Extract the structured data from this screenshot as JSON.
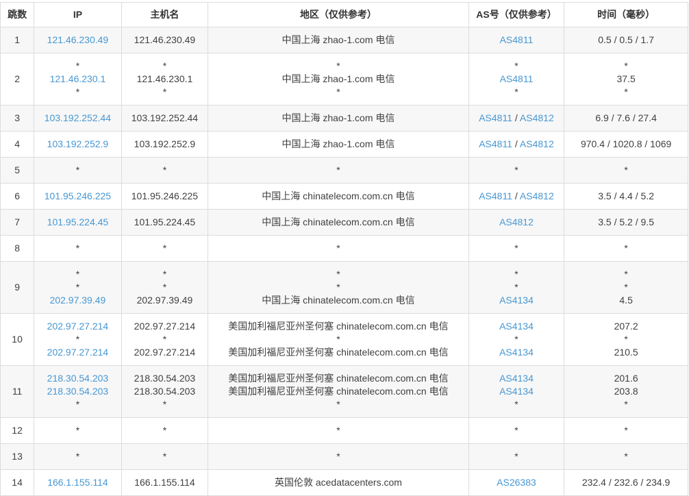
{
  "colors": {
    "link": "#4697d3",
    "text": "#3f3f3f",
    "stripe": "#f7f7f7",
    "border": "#dcdcdc"
  },
  "table": {
    "headers": [
      {
        "key": "hop",
        "label": "跳数"
      },
      {
        "key": "ip",
        "label": "IP"
      },
      {
        "key": "host",
        "label": "主机名"
      },
      {
        "key": "region",
        "label": "地区（仅供参考）"
      },
      {
        "key": "asn",
        "label": "AS号（仅供参考）"
      },
      {
        "key": "time",
        "label": "时间（毫秒）"
      }
    ],
    "rows": [
      {
        "hop": "1",
        "ip": [
          {
            "t": "121.46.230.49",
            "l": true
          }
        ],
        "host": [
          "121.46.230.49"
        ],
        "region": [
          "中国上海 zhao-1.com 电信"
        ],
        "asn": [
          [
            {
              "t": "AS4811",
              "l": true
            }
          ]
        ],
        "time": [
          "0.5 / 0.5 / 1.7"
        ]
      },
      {
        "hop": "2",
        "ip": [
          {
            "t": "*"
          },
          {
            "t": "121.46.230.1",
            "l": true
          },
          {
            "t": "*"
          }
        ],
        "host": [
          "*",
          "121.46.230.1",
          "*"
        ],
        "region": [
          "*",
          "中国上海 zhao-1.com 电信",
          "*"
        ],
        "asn": [
          [
            {
              "t": "*"
            }
          ],
          [
            {
              "t": "AS4811",
              "l": true
            }
          ],
          [
            {
              "t": "*"
            }
          ]
        ],
        "time": [
          "*",
          "37.5",
          "*"
        ]
      },
      {
        "hop": "3",
        "ip": [
          {
            "t": "103.192.252.44",
            "l": true
          }
        ],
        "host": [
          "103.192.252.44"
        ],
        "region": [
          "中国上海 zhao-1.com 电信"
        ],
        "asn": [
          [
            {
              "t": "AS4811",
              "l": true
            },
            {
              "t": " / "
            },
            {
              "t": "AS4812",
              "l": true
            }
          ]
        ],
        "time": [
          "6.9 / 7.6 / 27.4"
        ]
      },
      {
        "hop": "4",
        "ip": [
          {
            "t": "103.192.252.9",
            "l": true
          }
        ],
        "host": [
          "103.192.252.9"
        ],
        "region": [
          "中国上海 zhao-1.com 电信"
        ],
        "asn": [
          [
            {
              "t": "AS4811",
              "l": true
            },
            {
              "t": " / "
            },
            {
              "t": "AS4812",
              "l": true
            }
          ]
        ],
        "time": [
          "970.4 / 1020.8 / 1069"
        ]
      },
      {
        "hop": "5",
        "ip": [
          {
            "t": "*"
          }
        ],
        "host": [
          "*"
        ],
        "region": [
          "*"
        ],
        "asn": [
          [
            {
              "t": "*"
            }
          ]
        ],
        "time": [
          "*"
        ]
      },
      {
        "hop": "6",
        "ip": [
          {
            "t": "101.95.246.225",
            "l": true
          }
        ],
        "host": [
          "101.95.246.225"
        ],
        "region": [
          "中国上海 chinatelecom.com.cn 电信"
        ],
        "asn": [
          [
            {
              "t": "AS4811",
              "l": true
            },
            {
              "t": " / "
            },
            {
              "t": "AS4812",
              "l": true
            }
          ]
        ],
        "time": [
          "3.5 / 4.4 / 5.2"
        ]
      },
      {
        "hop": "7",
        "ip": [
          {
            "t": "101.95.224.45",
            "l": true
          }
        ],
        "host": [
          "101.95.224.45"
        ],
        "region": [
          "中国上海 chinatelecom.com.cn 电信"
        ],
        "asn": [
          [
            {
              "t": "AS4812",
              "l": true
            }
          ]
        ],
        "time": [
          "3.5 / 5.2 / 9.5"
        ]
      },
      {
        "hop": "8",
        "ip": [
          {
            "t": "*"
          }
        ],
        "host": [
          "*"
        ],
        "region": [
          "*"
        ],
        "asn": [
          [
            {
              "t": "*"
            }
          ]
        ],
        "time": [
          "*"
        ]
      },
      {
        "hop": "9",
        "ip": [
          {
            "t": "*"
          },
          {
            "t": "*"
          },
          {
            "t": "202.97.39.49",
            "l": true
          }
        ],
        "host": [
          "*",
          "*",
          "202.97.39.49"
        ],
        "region": [
          "*",
          "*",
          "中国上海 chinatelecom.com.cn 电信"
        ],
        "asn": [
          [
            {
              "t": "*"
            }
          ],
          [
            {
              "t": "*"
            }
          ],
          [
            {
              "t": "AS4134",
              "l": true
            }
          ]
        ],
        "time": [
          "*",
          "*",
          "4.5"
        ]
      },
      {
        "hop": "10",
        "ip": [
          {
            "t": "202.97.27.214",
            "l": true
          },
          {
            "t": "*"
          },
          {
            "t": "202.97.27.214",
            "l": true
          }
        ],
        "host": [
          "202.97.27.214",
          "*",
          "202.97.27.214"
        ],
        "region": [
          "美国加利福尼亚州圣何塞 chinatelecom.com.cn 电信",
          "*",
          "美国加利福尼亚州圣何塞 chinatelecom.com.cn 电信"
        ],
        "asn": [
          [
            {
              "t": "AS4134",
              "l": true
            }
          ],
          [
            {
              "t": "*"
            }
          ],
          [
            {
              "t": "AS4134",
              "l": true
            }
          ]
        ],
        "time": [
          "207.2",
          "*",
          "210.5"
        ]
      },
      {
        "hop": "11",
        "ip": [
          {
            "t": "218.30.54.203",
            "l": true
          },
          {
            "t": "218.30.54.203",
            "l": true
          },
          {
            "t": "*"
          }
        ],
        "host": [
          "218.30.54.203",
          "218.30.54.203",
          "*"
        ],
        "region": [
          "美国加利福尼亚州圣何塞 chinatelecom.com.cn 电信",
          "美国加利福尼亚州圣何塞 chinatelecom.com.cn 电信",
          "*"
        ],
        "asn": [
          [
            {
              "t": "AS4134",
              "l": true
            }
          ],
          [
            {
              "t": "AS4134",
              "l": true
            }
          ],
          [
            {
              "t": "*"
            }
          ]
        ],
        "time": [
          "201.6",
          "203.8",
          "*"
        ]
      },
      {
        "hop": "12",
        "ip": [
          {
            "t": "*"
          }
        ],
        "host": [
          "*"
        ],
        "region": [
          "*"
        ],
        "asn": [
          [
            {
              "t": "*"
            }
          ]
        ],
        "time": [
          "*"
        ]
      },
      {
        "hop": "13",
        "ip": [
          {
            "t": "*"
          }
        ],
        "host": [
          "*"
        ],
        "region": [
          "*"
        ],
        "asn": [
          [
            {
              "t": "*"
            }
          ]
        ],
        "time": [
          "*"
        ]
      },
      {
        "hop": "14",
        "ip": [
          {
            "t": "166.1.155.114",
            "l": true
          }
        ],
        "host": [
          "166.1.155.114"
        ],
        "region": [
          "英国伦敦 acedatacenters.com"
        ],
        "asn": [
          [
            {
              "t": "AS26383",
              "l": true
            }
          ]
        ],
        "time": [
          "232.4 / 232.6 / 234.9"
        ]
      }
    ]
  }
}
